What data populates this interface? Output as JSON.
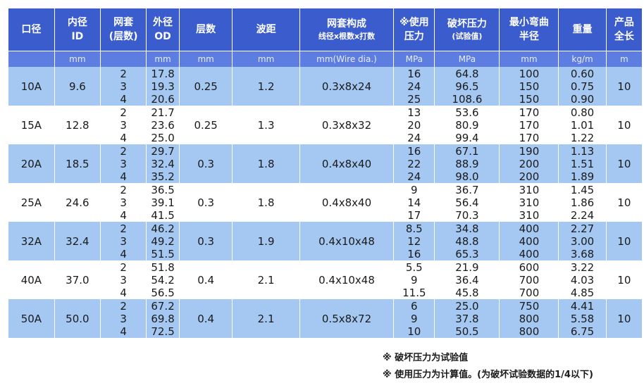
{
  "headers": [
    {
      "lines": [
        "口径"
      ]
    },
    {
      "lines": [
        "内径",
        "ID"
      ]
    },
    {
      "lines": [
        "网套",
        "(层数)"
      ]
    },
    {
      "lines": [
        "外径",
        "OD"
      ]
    },
    {
      "lines": [
        "层数"
      ]
    },
    {
      "lines": [
        "波距"
      ]
    },
    {
      "lines": [
        "网套构成"
      ],
      "sub": "线径x根数x打数"
    },
    {
      "lines": [
        "※使用",
        "压力"
      ]
    },
    {
      "lines": [
        "破坏压力"
      ],
      "sub": "(试验值)"
    },
    {
      "lines": [
        "最小弯曲",
        "半径"
      ]
    },
    {
      "lines": [
        "重量"
      ]
    },
    {
      "lines": [
        "产品",
        "全长"
      ]
    }
  ],
  "units": [
    "",
    "mm",
    "",
    "mm",
    "mm",
    "mm",
    "mm(Wire dia.)",
    "MPa",
    "MPa",
    "mm",
    "kg/m",
    "m"
  ],
  "rows": [
    {
      "size": "10A",
      "id": "9.6",
      "layers": [
        "2",
        "3",
        "4"
      ],
      "od": [
        "17.8",
        "19.3",
        "20.6"
      ],
      "thickness": "0.25",
      "pitch": "1.2",
      "braid": "0.3x8x24",
      "pressure": [
        "16",
        "24",
        "25"
      ],
      "burst": [
        "64.8",
        "96.5",
        "108.6"
      ],
      "bend": [
        "100",
        "150",
        "150"
      ],
      "weight": [
        "0.60",
        "0.75",
        "0.90"
      ],
      "length": "10"
    },
    {
      "size": "15A",
      "id": "12.8",
      "layers": [
        "2",
        "3",
        "4"
      ],
      "od": [
        "21.7",
        "23.6",
        "25.0"
      ],
      "thickness": "0.25",
      "pitch": "1.3",
      "braid": "0.3x8x32",
      "pressure": [
        "13",
        "20",
        "24"
      ],
      "burst": [
        "53.6",
        "80.9",
        "99.4"
      ],
      "bend": [
        "170",
        "170",
        "170"
      ],
      "weight": [
        "0.80",
        "1.01",
        "1.22"
      ],
      "length": "10"
    },
    {
      "size": "20A",
      "id": "18.5",
      "layers": [
        "2",
        "3",
        "4"
      ],
      "od": [
        "29.7",
        "32.4",
        "35.2"
      ],
      "thickness": "0.3",
      "pitch": "1.8",
      "braid": "0.4x8x40",
      "pressure": [
        "16",
        "22",
        "24"
      ],
      "burst": [
        "67.1",
        "88.9",
        "98.0"
      ],
      "bend": [
        "190",
        "200",
        "200"
      ],
      "weight": [
        "1.13",
        "1.51",
        "1.89"
      ],
      "length": "10"
    },
    {
      "size": "25A",
      "id": "24.6",
      "layers": [
        "2",
        "3",
        "4"
      ],
      "od": [
        "36.5",
        "39.1",
        "41.5"
      ],
      "thickness": "0.3",
      "pitch": "1.8",
      "braid": "0.4x8x40",
      "pressure": [
        "9",
        "14",
        "17"
      ],
      "burst": [
        "36.7",
        "56.4",
        "70.3"
      ],
      "bend": [
        "310",
        "310",
        "310"
      ],
      "weight": [
        "1.45",
        "1.86",
        "2.24"
      ],
      "length": "10"
    },
    {
      "size": "32A",
      "id": "32.4",
      "layers": [
        "2",
        "3",
        "4"
      ],
      "od": [
        "46.2",
        "49.2",
        "51.5"
      ],
      "thickness": "0.3",
      "pitch": "1.9",
      "braid": "0.4x10x48",
      "pressure": [
        "8.5",
        "12",
        "16"
      ],
      "burst": [
        "34.8",
        "48.8",
        "65.3"
      ],
      "bend": [
        "400",
        "400",
        "400"
      ],
      "weight": [
        "2.27",
        "3.00",
        "3.68"
      ],
      "length": "10"
    },
    {
      "size": "40A",
      "id": "37.0",
      "layers": [
        "2",
        "3",
        "4"
      ],
      "od": [
        "51.8",
        "54.2",
        "56.5"
      ],
      "thickness": "0.4",
      "pitch": "2.1",
      "braid": "0.4x10x48",
      "pressure": [
        "5.5",
        "9",
        "11.5"
      ],
      "burst": [
        "21.9",
        "36.4",
        "45.8"
      ],
      "bend": [
        "600",
        "700",
        "700"
      ],
      "weight": [
        "3.22",
        "4.03",
        "4.85"
      ],
      "length": "10"
    },
    {
      "size": "50A",
      "id": "50.0",
      "layers": [
        "2",
        "3",
        "4"
      ],
      "od": [
        "67.2",
        "69.8",
        "72.5"
      ],
      "thickness": "0.4",
      "pitch": "2.1",
      "braid": "0.5x8x72",
      "pressure": [
        "6",
        "9",
        "10"
      ],
      "burst": [
        "25.0",
        "37.8",
        "50.5"
      ],
      "bend": [
        "750",
        "800",
        "800"
      ],
      "weight": [
        "4.41",
        "5.58",
        "6.75"
      ],
      "length": "10"
    }
  ],
  "notes": {
    "note1": "※ 破坏压力为试验值",
    "note2": "※ 使用压力为计算值。(为破坏试验数据的1/4以下)"
  },
  "colors": {
    "header": "#3b5ccc",
    "units_row": "#5d7de0",
    "stripe": "#a4c8f2"
  }
}
